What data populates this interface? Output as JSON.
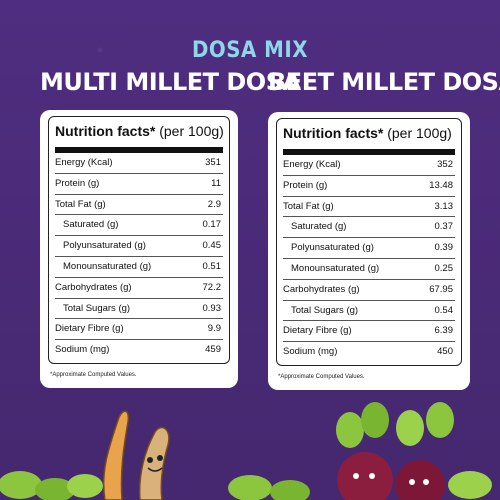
{
  "header": {
    "title": "DOSA MIX"
  },
  "products": [
    {
      "name": "MULTI MILLET DOSA",
      "panel_title": "Nutrition facts*",
      "panel_sub": "(per 100g)",
      "rows": [
        {
          "label": "Energy (Kcal)",
          "value": "351",
          "indent": false
        },
        {
          "label": "Protein (g)",
          "value": "11",
          "indent": false
        },
        {
          "label": "Total Fat (g)",
          "value": "2.9",
          "indent": false
        },
        {
          "label": "Saturated (g)",
          "value": "0.17",
          "indent": true
        },
        {
          "label": "Polyunsaturated (g)",
          "value": "0.45",
          "indent": true
        },
        {
          "label": "Monounsaturated (g)",
          "value": "0.51",
          "indent": true
        },
        {
          "label": "Carbohydrates (g)",
          "value": "72.2",
          "indent": false
        },
        {
          "label": "Total Sugars (g)",
          "value": "0.93",
          "indent": true
        },
        {
          "label": "Dietary Fibre (g)",
          "value": "9.9",
          "indent": false
        },
        {
          "label": "Sodium (mg)",
          "value": "459",
          "indent": false
        }
      ],
      "note": "*Approximate Computed Values."
    },
    {
      "name": "BEET MILLET DOSA",
      "panel_title": "Nutrition facts*",
      "panel_sub": "(per 100g)",
      "rows": [
        {
          "label": "Energy (Kcal)",
          "value": "352",
          "indent": false
        },
        {
          "label": "Protein (g)",
          "value": "13.48",
          "indent": false
        },
        {
          "label": "Total Fat (g)",
          "value": "3.13",
          "indent": false
        },
        {
          "label": "Saturated (g)",
          "value": "0.37",
          "indent": true
        },
        {
          "label": "Polyunsaturated (g)",
          "value": "0.39",
          "indent": true
        },
        {
          "label": "Monounsaturated (g)",
          "value": "0.25",
          "indent": true
        },
        {
          "label": "Carbohydrates (g)",
          "value": "67.95",
          "indent": false
        },
        {
          "label": "Total Sugars (g)",
          "value": "0.54",
          "indent": true
        },
        {
          "label": "Dietary Fibre (g)",
          "value": "6.39",
          "indent": false
        },
        {
          "label": "Sodium (mg)",
          "value": "450",
          "indent": false
        }
      ],
      "note": "*Approximate Computed Values."
    }
  ],
  "colors": {
    "background": "#4a2a78",
    "title": "#8fd6ea",
    "leaf": "#8cc63f",
    "beet": "#8b1e3f"
  },
  "icons": [
    "beet-leaves-illustration",
    "millet-character-illustration"
  ]
}
